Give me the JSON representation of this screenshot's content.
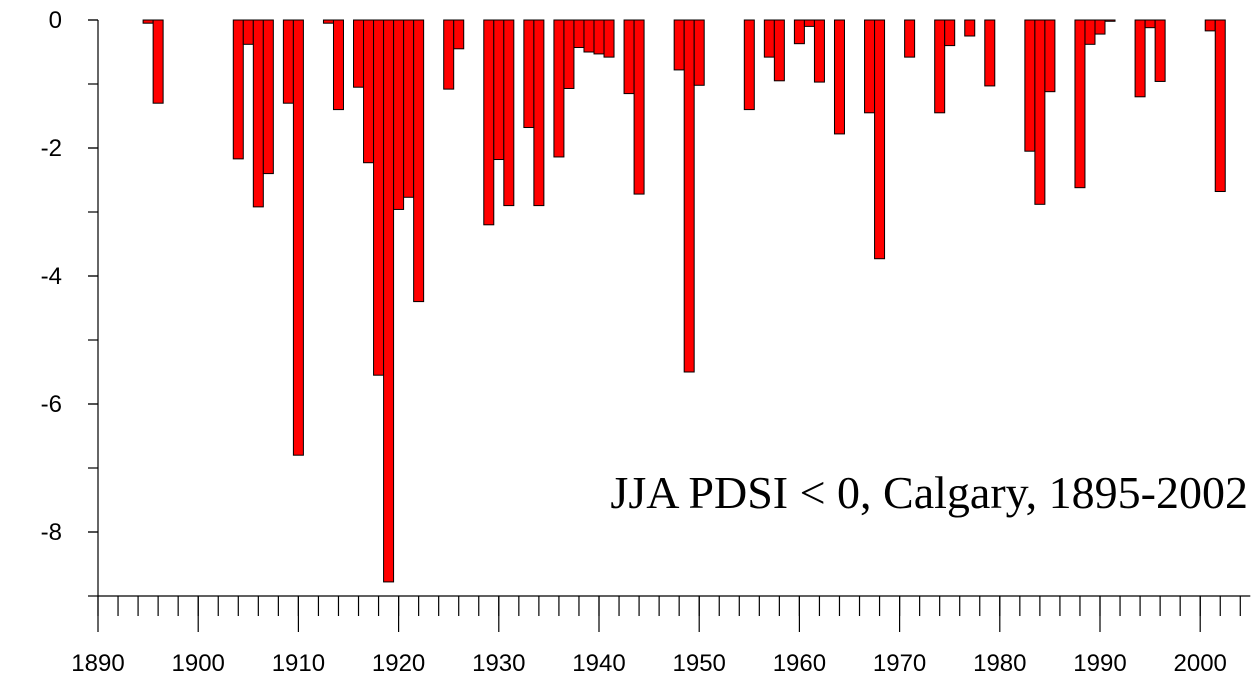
{
  "chart_data": {
    "type": "bar",
    "annotation": "JJA PDSI < 0, Calgary, 1895-2002",
    "x": [
      1895,
      1896,
      1904,
      1905,
      1906,
      1907,
      1909,
      1910,
      1913,
      1914,
      1916,
      1917,
      1918,
      1919,
      1920,
      1921,
      1922,
      1925,
      1926,
      1929,
      1930,
      1931,
      1933,
      1934,
      1936,
      1937,
      1938,
      1939,
      1940,
      1941,
      1943,
      1944,
      1948,
      1949,
      1950,
      1955,
      1957,
      1958,
      1960,
      1961,
      1962,
      1964,
      1967,
      1968,
      1971,
      1974,
      1975,
      1977,
      1979,
      1983,
      1984,
      1985,
      1988,
      1989,
      1990,
      1991,
      1994,
      1995,
      1996,
      2001,
      2002
    ],
    "values": [
      -0.05,
      -1.3,
      -2.17,
      -0.38,
      -2.92,
      -2.4,
      -1.3,
      -6.8,
      -0.05,
      -1.4,
      -1.05,
      -2.23,
      -5.55,
      -8.78,
      -2.96,
      -2.77,
      -4.4,
      -1.08,
      -0.45,
      -3.2,
      -2.18,
      -2.9,
      -1.68,
      -2.9,
      -2.14,
      -1.07,
      -0.43,
      -0.5,
      -0.53,
      -0.58,
      -1.15,
      -2.72,
      -0.78,
      -5.5,
      -1.02,
      -1.4,
      -0.58,
      -0.95,
      -0.37,
      -0.1,
      -0.97,
      -1.78,
      -1.45,
      -3.73,
      -0.58,
      -1.45,
      -0.4,
      -0.25,
      -1.03,
      -2.05,
      -2.88,
      -1.12,
      -2.62,
      -0.38,
      -0.22,
      -0.02,
      -1.2,
      -0.12,
      -0.96,
      -0.17,
      -2.68
    ],
    "color": "#ff0000",
    "xlim": [
      1890,
      2005
    ],
    "xticks": [
      1890,
      1900,
      1910,
      1920,
      1930,
      1940,
      1950,
      1960,
      1970,
      1980,
      1990,
      2000
    ],
    "xminor_step": 2,
    "ylim": [
      -9,
      0
    ],
    "yticks": [
      0,
      -2,
      -4,
      -6,
      -8
    ],
    "yminor_step": 1
  }
}
